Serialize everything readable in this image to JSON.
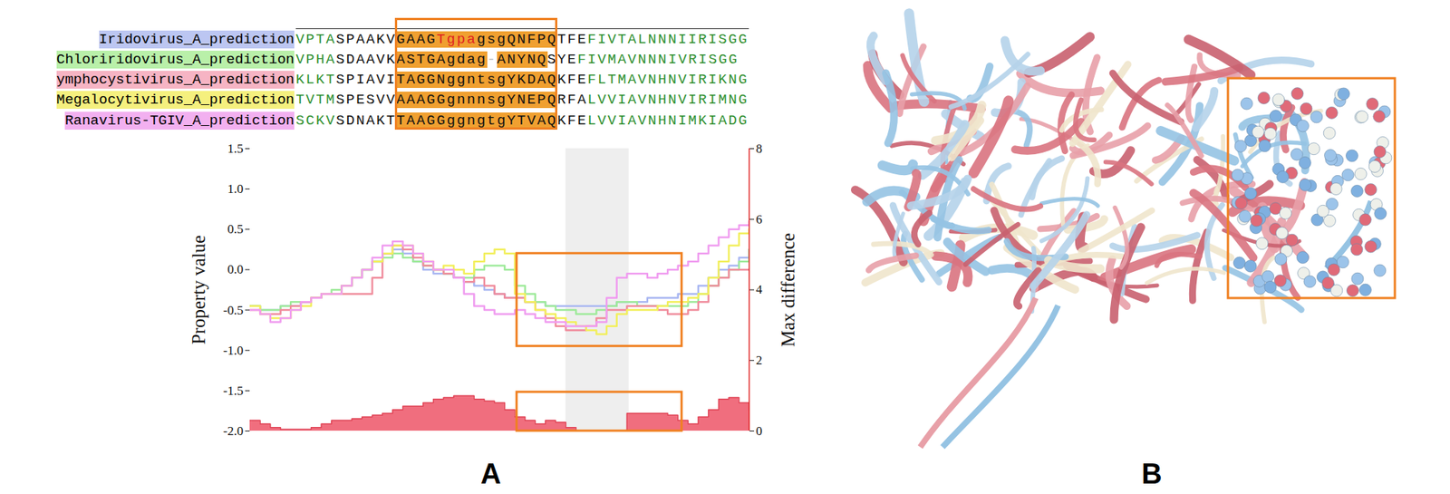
{
  "alignment": {
    "rows": [
      {
        "name": "Iridovirus_A_prediction",
        "color": "#bcc6f2",
        "segments": [
          {
            "text": "VPTA",
            "style": "green"
          },
          {
            "text": "SPAAKV",
            "style": "black"
          },
          {
            "text": "GAAG",
            "style": "block"
          },
          {
            "text": "Tgpa",
            "style": "block_red"
          },
          {
            "text": "gsgQNFPQ",
            "style": "block"
          },
          {
            "text": "TFE",
            "style": "black"
          },
          {
            "text": "FIVTALNNNIIRISGG",
            "style": "green"
          }
        ]
      },
      {
        "name": "Chloriridovirus_A_prediction",
        "color": "#b9f0a9",
        "segments": [
          {
            "text": "VPHA",
            "style": "green"
          },
          {
            "text": "SDAAVK",
            "style": "black"
          },
          {
            "text": "ASTGAgdag",
            "style": "block"
          },
          {
            "text": "-",
            "style": "gap"
          },
          {
            "text": "ANYNQ",
            "style": "block"
          },
          {
            "text": "SYE",
            "style": "black"
          },
          {
            "text": "FIVMAVNNNIVRISGG",
            "style": "green"
          }
        ]
      },
      {
        "name": "ymphocystivirus_A_prediction",
        "color": "#f6b4c4",
        "segments": [
          {
            "text": "KLKT",
            "style": "green"
          },
          {
            "text": "SPIAVI",
            "style": "black"
          },
          {
            "text": "TAGGNggntsgYKDAQ",
            "style": "block"
          },
          {
            "text": "KFE",
            "style": "black"
          },
          {
            "text": "FLTMAVNHNVIRIKNG",
            "style": "green"
          }
        ]
      },
      {
        "name": "Megalocytivirus_A_prediction",
        "color": "#f5f07e",
        "segments": [
          {
            "text": "TVTM",
            "style": "green"
          },
          {
            "text": "SPESVV",
            "style": "black"
          },
          {
            "text": "AAAGGgnnnsgYNEPQ",
            "style": "block"
          },
          {
            "text": "RFA",
            "style": "black"
          },
          {
            "text": "LVVIAVNHNVIRIMNG",
            "style": "green"
          }
        ]
      },
      {
        "name": "Ranavirus-TGIV_A_prediction",
        "color": "#f2b0f0",
        "segments": [
          {
            "text": "SCKV",
            "style": "green"
          },
          {
            "text": "SDNAKT",
            "style": "black"
          },
          {
            "text": "TAAGGggngtgYTVAQ",
            "style": "block"
          },
          {
            "text": "KFE",
            "style": "black"
          },
          {
            "text": "LVVIAVNHNIMKIADG",
            "style": "green"
          }
        ]
      }
    ]
  },
  "panel_labels": [
    "A",
    "B"
  ],
  "chart_data": {
    "type": "line",
    "y_label": "Property value",
    "y2_label": "Max difference",
    "grid": false,
    "tick_labels": "y",
    "line_style": "step",
    "x": [
      0,
      1,
      2,
      3,
      4,
      5,
      6,
      7,
      8,
      9,
      10,
      11,
      12,
      13,
      14,
      15,
      16,
      17,
      18,
      19,
      20,
      21,
      22,
      23,
      24,
      25,
      26,
      27,
      28,
      29,
      30,
      31,
      32,
      33,
      34,
      35,
      36,
      37,
      38,
      39,
      40,
      41,
      42,
      43,
      44,
      45,
      46,
      47,
      48,
      49
    ],
    "xlim": [
      0,
      49
    ],
    "ylim": [
      -2.0,
      1.5
    ],
    "yticks": [
      {
        "value": -2.0,
        "label": "-2.0"
      },
      {
        "value": -1.5,
        "label": "-1.5"
      },
      {
        "value": -1.0,
        "label": "-1.0"
      },
      {
        "value": -0.5,
        "label": "-0.5"
      },
      {
        "value": 0,
        "label": "0.0"
      },
      {
        "value": 0.5,
        "label": "0.5"
      },
      {
        "value": 1.0,
        "label": "1.0"
      },
      {
        "value": 1.5,
        "label": "1.5"
      }
    ],
    "y2lim": [
      0,
      8
    ],
    "y2ticks": [
      0,
      2,
      4,
      6,
      8
    ],
    "highlight_x": [
      31,
      37.2
    ],
    "boxes": [
      {
        "x": [
          26.2,
          42.4
        ],
        "y": [
          -0.95,
          0.2
        ]
      },
      {
        "x": [
          26.2,
          42.4
        ],
        "y": [
          0,
          1.1
        ],
        "axis": "y2"
      }
    ],
    "series": [
      {
        "color": "#a9b7f2",
        "type": "line",
        "values": [
          -0.45,
          -0.5,
          -0.5,
          -0.45,
          -0.45,
          -0.4,
          -0.35,
          -0.3,
          -0.3,
          -0.2,
          -0.1,
          0.0,
          0.1,
          0.2,
          0.25,
          0.2,
          0.1,
          0.0,
          -0.05,
          -0.05,
          -0.1,
          -0.15,
          -0.2,
          -0.25,
          -0.3,
          -0.35,
          -0.35,
          -0.4,
          -0.4,
          -0.45,
          -0.45,
          -0.45,
          -0.45,
          -0.45,
          -0.45,
          -0.45,
          -0.4,
          -0.4,
          -0.4,
          -0.35,
          -0.35,
          -0.35,
          -0.3,
          -0.3,
          -0.2,
          -0.1,
          0.0,
          0.05,
          0.15,
          0.25
        ]
      },
      {
        "color": "#9eea9a",
        "type": "line",
        "values": [
          -0.45,
          -0.5,
          -0.5,
          -0.45,
          -0.4,
          -0.4,
          -0.35,
          -0.3,
          -0.25,
          -0.2,
          -0.1,
          0.0,
          0.1,
          0.15,
          0.2,
          0.15,
          0.1,
          0.05,
          0.0,
          -0.05,
          -0.1,
          -0.1,
          0.0,
          0.05,
          0.05,
          0.0,
          -0.2,
          -0.3,
          -0.4,
          -0.45,
          -0.5,
          -0.5,
          -0.55,
          -0.55,
          -0.5,
          -0.45,
          -0.4,
          -0.4,
          -0.45,
          -0.45,
          -0.45,
          -0.45,
          -0.45,
          -0.4,
          -0.3,
          -0.2,
          -0.1,
          0.0,
          0.1,
          0.25
        ]
      },
      {
        "color": "#f08c9c",
        "type": "line",
        "values": [
          -0.5,
          -0.55,
          -0.55,
          -0.5,
          -0.45,
          -0.4,
          -0.35,
          -0.3,
          -0.3,
          -0.3,
          -0.3,
          -0.3,
          -0.1,
          0.2,
          0.3,
          0.25,
          0.15,
          0.05,
          0.0,
          -0.05,
          -0.1,
          -0.15,
          -0.1,
          -0.2,
          -0.3,
          -0.35,
          -0.35,
          -0.4,
          -0.5,
          -0.6,
          -0.7,
          -0.75,
          -0.75,
          -0.7,
          -0.6,
          -0.5,
          -0.5,
          -0.45,
          -0.45,
          -0.45,
          -0.5,
          -0.55,
          -0.55,
          -0.5,
          -0.4,
          -0.2,
          -0.1,
          0.0,
          0.0,
          0.0
        ]
      },
      {
        "color": "#f2ef5c",
        "type": "line",
        "values": [
          -0.45,
          -0.55,
          -0.6,
          -0.6,
          -0.5,
          -0.45,
          -0.35,
          -0.3,
          -0.3,
          -0.2,
          -0.1,
          0.0,
          0.1,
          0.2,
          0.3,
          0.3,
          0.2,
          0.1,
          0.0,
          0.05,
          0.0,
          -0.05,
          0.1,
          0.2,
          0.25,
          0.2,
          -0.3,
          -0.4,
          -0.5,
          -0.55,
          -0.6,
          -0.65,
          -0.7,
          -0.75,
          -0.8,
          -0.7,
          -0.55,
          -0.5,
          -0.5,
          -0.5,
          -0.45,
          -0.4,
          -0.4,
          -0.35,
          -0.3,
          -0.1,
          0.1,
          0.3,
          0.45,
          0.5
        ]
      },
      {
        "color": "#f09cf0",
        "type": "line",
        "values": [
          -0.5,
          -0.55,
          -0.65,
          -0.6,
          -0.5,
          -0.4,
          -0.35,
          -0.3,
          -0.3,
          -0.2,
          -0.1,
          0.0,
          0.15,
          0.3,
          0.35,
          0.3,
          0.2,
          0.1,
          0.0,
          0.0,
          -0.1,
          -0.3,
          -0.45,
          -0.5,
          -0.55,
          -0.55,
          -0.5,
          -0.55,
          -0.6,
          -0.65,
          -0.65,
          -0.7,
          -0.7,
          -0.7,
          -0.65,
          -0.35,
          -0.1,
          -0.05,
          -0.05,
          -0.1,
          -0.05,
          0.0,
          0.05,
          0.1,
          0.2,
          0.3,
          0.4,
          0.5,
          0.55,
          0.6
        ]
      },
      {
        "color": "#f06e7e",
        "type": "area",
        "axis": "y2",
        "values": [
          0.3,
          0.2,
          0.1,
          0.05,
          0.05,
          0.05,
          0.1,
          0.2,
          0.3,
          0.3,
          0.35,
          0.4,
          0.45,
          0.5,
          0.6,
          0.7,
          0.7,
          0.8,
          0.9,
          0.95,
          1.0,
          1.0,
          0.9,
          0.85,
          0.8,
          0.6,
          0.4,
          0.3,
          0.2,
          0.3,
          0.25,
          0.1,
          0,
          0,
          0,
          0,
          0,
          0.5,
          0.5,
          0.5,
          0.5,
          0.45,
          0.3,
          0.2,
          0.4,
          0.6,
          0.9,
          0.95,
          0.8,
          0.6
        ]
      }
    ]
  }
}
